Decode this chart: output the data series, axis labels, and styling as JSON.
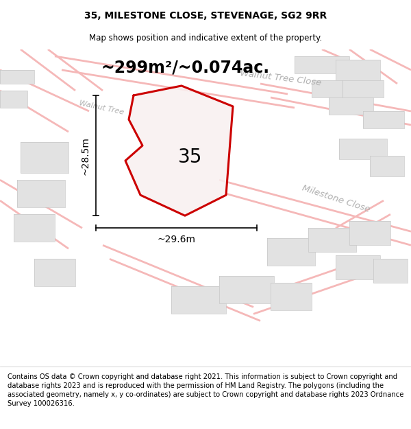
{
  "title": "35, MILESTONE CLOSE, STEVENAGE, SG2 9RR",
  "subtitle": "Map shows position and indicative extent of the property.",
  "area_text": "~299m²/~0.074ac.",
  "label_35": "35",
  "dim_h": "~28.5m",
  "dim_w": "~29.6m",
  "footer": "Contains OS data © Crown copyright and database right 2021. This information is subject to Crown copyright and database rights 2023 and is reproduced with the permission of HM Land Registry. The polygons (including the associated geometry, namely x, y co-ordinates) are subject to Crown copyright and database rights 2023 Ordnance Survey 100026316.",
  "title_fontsize": 10,
  "subtitle_fontsize": 8.5,
  "area_fontsize": 17,
  "label_fontsize": 20,
  "dim_fontsize": 10,
  "footer_fontsize": 7.2,
  "plot_color": "#cc0000",
  "road_color": "#f5b8b8",
  "road_color2": "#e89898",
  "building_fill": "#e2e2e2",
  "building_edge": "#c8c8c8",
  "road_label_color": "#b0b0b0",
  "map_bg": "#f9f9f9",
  "prop_fill": "#f9f0f0"
}
